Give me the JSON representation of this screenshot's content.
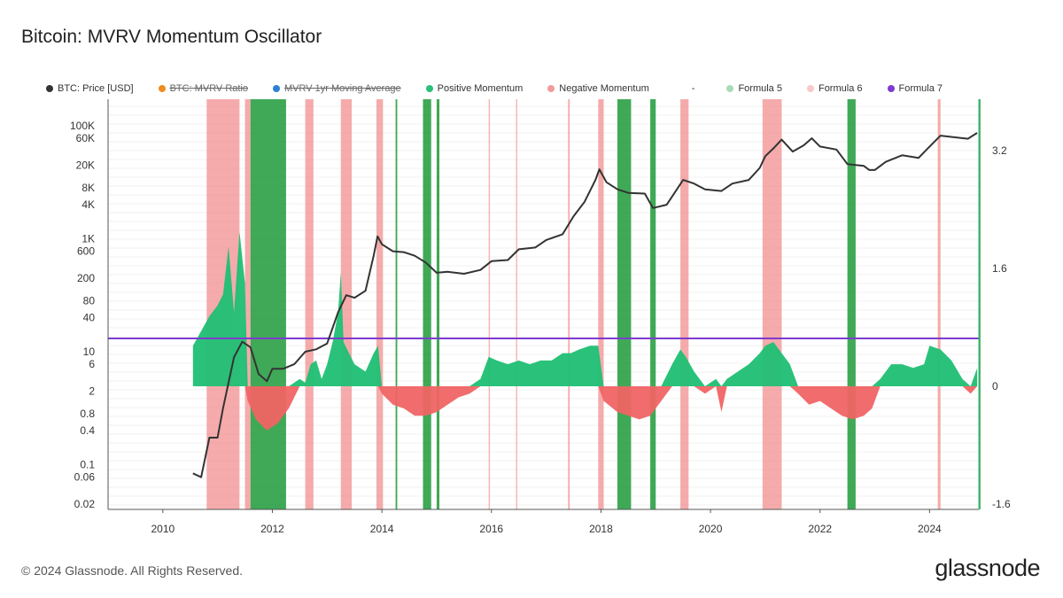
{
  "title": "Bitcoin: MVRV Momentum Oscillator",
  "legend": [
    {
      "label": "BTC: Price [USD]",
      "color": "#333333",
      "struck": false
    },
    {
      "label": "BTC: MVRV Ratio",
      "color": "#f08c1e",
      "struck": true
    },
    {
      "label": "MVRV 1yr Moving Average",
      "color": "#2f7fd8",
      "struck": true
    },
    {
      "label": "Positive Momentum",
      "color": "#2bbf7a",
      "struck": false
    },
    {
      "label": "Negative Momentum",
      "color": "#f29a9a",
      "struck": false
    },
    {
      "label": "-",
      "color": "",
      "struck": false
    },
    {
      "label": "Formula 5",
      "color": "#a9dbb8",
      "struck": false
    },
    {
      "label": "Formula 6",
      "color": "#f7c9c9",
      "struck": false
    },
    {
      "label": "Formula 7",
      "color": "#7e3bd1",
      "struck": false
    }
  ],
  "footer": "© 2024 Glassnode. All Rights Reserved.",
  "brand": "glassnode",
  "chart_data": {
    "type": "line",
    "x_ticks": [
      "2010",
      "2012",
      "2014",
      "2016",
      "2018",
      "2020",
      "2022",
      "2024"
    ],
    "xlim": [
      2009.0,
      2024.9
    ],
    "y_left": {
      "scale": "log",
      "ticks": [
        "100K",
        "60K",
        "20K",
        "8K",
        "4K",
        "1K",
        "600",
        "200",
        "80",
        "40",
        "10",
        "6",
        "2",
        "0.8",
        "0.4",
        "0.1",
        "0.06",
        "0.02"
      ],
      "tick_values": [
        100000,
        60000,
        20000,
        8000,
        4000,
        1000,
        600,
        200,
        80,
        40,
        10,
        6,
        2,
        0.8,
        0.4,
        0.1,
        0.06,
        0.02
      ]
    },
    "y_right": {
      "scale": "linear",
      "ticks": [
        "3.2",
        "1.6",
        "0",
        "-1.6"
      ],
      "tick_values": [
        3.2,
        1.6,
        0,
        -1.6
      ]
    },
    "price_series": {
      "name": "BTC: Price [USD]",
      "x": [
        2010.55,
        2010.7,
        2010.85,
        2011.0,
        2011.1,
        2011.3,
        2011.45,
        2011.6,
        2011.75,
        2011.9,
        2012.0,
        2012.2,
        2012.4,
        2012.6,
        2012.8,
        2013.0,
        2013.2,
        2013.35,
        2013.5,
        2013.7,
        2013.85,
        2013.92,
        2014.0,
        2014.2,
        2014.4,
        2014.6,
        2014.8,
        2015.0,
        2015.2,
        2015.5,
        2015.8,
        2016.0,
        2016.3,
        2016.5,
        2016.8,
        2017.0,
        2017.3,
        2017.5,
        2017.7,
        2017.9,
        2017.97,
        2018.1,
        2018.3,
        2018.5,
        2018.8,
        2018.95,
        2019.2,
        2019.5,
        2019.7,
        2019.9,
        2020.2,
        2020.4,
        2020.7,
        2020.9,
        2021.0,
        2021.15,
        2021.3,
        2021.5,
        2021.7,
        2021.85,
        2022.0,
        2022.3,
        2022.5,
        2022.8,
        2022.9,
        2023.0,
        2023.2,
        2023.5,
        2023.8,
        2024.0,
        2024.2,
        2024.5,
        2024.7,
        2024.87
      ],
      "y": [
        0.07,
        0.06,
        0.3,
        0.3,
        1.0,
        8.0,
        15.0,
        12.0,
        4.0,
        3.0,
        5.0,
        5.0,
        6.0,
        10.0,
        11.0,
        14.0,
        50.0,
        100.0,
        90.0,
        120.0,
        500.0,
        1100.0,
        800.0,
        600.0,
        580.0,
        500.0,
        380.0,
        250.0,
        260.0,
        240.0,
        280.0,
        400.0,
        420.0,
        650.0,
        700.0,
        950.0,
        1200.0,
        2500.0,
        4500.0,
        11000.0,
        17000.0,
        10000.0,
        7500.0,
        6500.0,
        6300.0,
        3500.0,
        4000.0,
        11000.0,
        9500.0,
        7500.0,
        7000.0,
        9500.0,
        11000.0,
        18000.0,
        29000.0,
        40000.0,
        57000.0,
        35000.0,
        45000.0,
        60000.0,
        43000.0,
        38000.0,
        21000.0,
        19500.0,
        16500.0,
        16500.0,
        23000.0,
        30000.0,
        27000.0,
        43000.0,
        67000.0,
        62000.0,
        59000.0,
        75000.0
      ]
    },
    "oscillator": {
      "threshold_name": "Formula 7",
      "threshold": 0.65,
      "x": [
        2010.55,
        2010.7,
        2010.85,
        2011.0,
        2011.1,
        2011.2,
        2011.3,
        2011.4,
        2011.5,
        2011.55,
        2011.7,
        2011.9,
        2012.1,
        2012.3,
        2012.5,
        2012.6,
        2012.7,
        2012.8,
        2012.9,
        2013.0,
        2013.1,
        2013.2,
        2013.25,
        2013.3,
        2013.5,
        2013.7,
        2013.85,
        2013.93,
        2014.0,
        2014.2,
        2014.4,
        2014.6,
        2014.8,
        2015.0,
        2015.2,
        2015.4,
        2015.6,
        2015.8,
        2015.95,
        2016.1,
        2016.3,
        2016.5,
        2016.7,
        2016.9,
        2017.1,
        2017.3,
        2017.45,
        2017.6,
        2017.8,
        2017.95,
        2018.05,
        2018.3,
        2018.5,
        2018.7,
        2018.9,
        2019.1,
        2019.3,
        2019.45,
        2019.55,
        2019.7,
        2019.9,
        2020.1,
        2020.2,
        2020.3,
        2020.5,
        2020.7,
        2020.9,
        2021.0,
        2021.15,
        2021.3,
        2021.45,
        2021.6,
        2021.8,
        2022.0,
        2022.2,
        2022.4,
        2022.6,
        2022.8,
        2022.95,
        2023.1,
        2023.3,
        2023.5,
        2023.7,
        2023.9,
        2024.0,
        2024.2,
        2024.4,
        2024.6,
        2024.75,
        2024.87
      ],
      "y": [
        0.55,
        0.75,
        0.95,
        1.1,
        1.25,
        1.9,
        1.0,
        2.1,
        1.4,
        -0.2,
        -0.45,
        -0.6,
        -0.5,
        -0.3,
        0.1,
        0.05,
        0.3,
        0.35,
        0.1,
        0.3,
        0.6,
        1.0,
        1.55,
        0.6,
        0.3,
        0.2,
        0.45,
        0.55,
        -0.1,
        -0.25,
        -0.3,
        -0.4,
        -0.4,
        -0.35,
        -0.25,
        -0.15,
        -0.1,
        0.1,
        0.4,
        0.35,
        0.3,
        0.35,
        0.3,
        0.35,
        0.35,
        0.45,
        0.45,
        0.5,
        0.55,
        0.55,
        -0.2,
        -0.35,
        -0.4,
        -0.45,
        -0.4,
        -0.2,
        0.3,
        0.5,
        0.4,
        0.2,
        -0.1,
        0.1,
        -0.35,
        0.1,
        0.2,
        0.3,
        0.45,
        0.55,
        0.6,
        0.45,
        0.3,
        -0.1,
        -0.25,
        -0.2,
        -0.3,
        -0.4,
        -0.45,
        -0.4,
        -0.3,
        0.1,
        0.3,
        0.3,
        0.25,
        0.3,
        0.55,
        0.5,
        0.35,
        0.1,
        -0.1,
        0.25
      ]
    },
    "negative_signal_bands": [
      {
        "start": 2010.8,
        "end": 2011.4
      },
      {
        "start": 2011.5,
        "end": 2011.6
      },
      {
        "start": 2012.6,
        "end": 2012.75
      },
      {
        "start": 2013.25,
        "end": 2013.45
      },
      {
        "start": 2013.9,
        "end": 2014.02
      },
      {
        "start": 2015.95,
        "end": 2015.97
      },
      {
        "start": 2016.45,
        "end": 2016.47
      },
      {
        "start": 2017.4,
        "end": 2017.43
      },
      {
        "start": 2017.95,
        "end": 2018.05
      },
      {
        "start": 2019.45,
        "end": 2019.6
      },
      {
        "start": 2020.95,
        "end": 2021.3
      },
      {
        "start": 2024.15,
        "end": 2024.2
      }
    ],
    "positive_signal_bands": [
      {
        "start": 2011.6,
        "end": 2012.25
      },
      {
        "start": 2014.25,
        "end": 2014.28
      },
      {
        "start": 2014.75,
        "end": 2014.9
      },
      {
        "start": 2015.0,
        "end": 2015.05
      },
      {
        "start": 2018.3,
        "end": 2018.55
      },
      {
        "start": 2018.9,
        "end": 2019.0
      },
      {
        "start": 2022.5,
        "end": 2022.65
      },
      {
        "start": 2024.9,
        "end": 2024.93
      }
    ]
  }
}
